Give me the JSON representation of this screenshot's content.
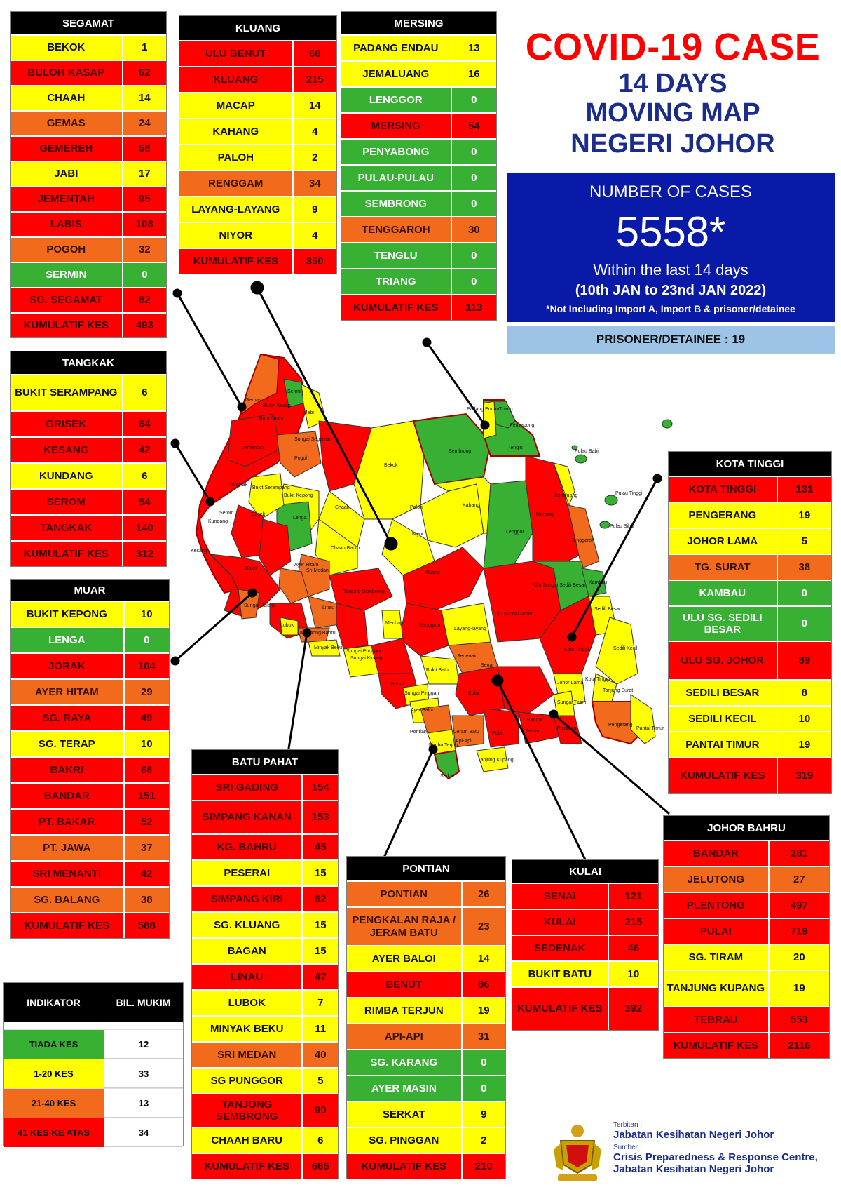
{
  "header": {
    "title": "COVID-19 CASE",
    "subtitle_lines": [
      "14 DAYS",
      "MOVING MAP",
      "NEGERI JOHOR"
    ]
  },
  "summary": {
    "label": "NUMBER OF CASES",
    "total": "5558*",
    "within": "Within the last 14 days",
    "range": "(10th JAN to 23nd JAN 2022)",
    "note": "*Not Including Import A, Import B & prisoner/detainee",
    "prisoner": "PRISONER/DETAINEE : 19"
  },
  "colors": {
    "red": "#ff0000",
    "yellow": "#ffff00",
    "orange": "#f26b1d",
    "green": "#38b034"
  },
  "districts": {
    "segamat": {
      "title": "SEGAMAT",
      "rows": [
        {
          "name": "BEKOK",
          "value": "1",
          "level": "yellow"
        },
        {
          "name": "BULOH KASAP",
          "value": "62",
          "level": "red"
        },
        {
          "name": "CHAAH",
          "value": "14",
          "level": "yellow"
        },
        {
          "name": "GEMAS",
          "value": "24",
          "level": "orange"
        },
        {
          "name": "GEMEREH",
          "value": "58",
          "level": "red"
        },
        {
          "name": "JABI",
          "value": "17",
          "level": "yellow"
        },
        {
          "name": "JEMENTAH",
          "value": "95",
          "level": "red"
        },
        {
          "name": "LABIS",
          "value": "108",
          "level": "red"
        },
        {
          "name": "POGOH",
          "value": "32",
          "level": "orange"
        },
        {
          "name": "SERMIN",
          "value": "0",
          "level": "green"
        },
        {
          "name": "SG. SEGAMAT",
          "value": "82",
          "level": "red"
        },
        {
          "name": "KUMULATIF KES",
          "value": "493",
          "level": "red"
        }
      ]
    },
    "kluang": {
      "title": "KLUANG",
      "rows": [
        {
          "name": "ULU BENUT",
          "value": "68",
          "level": "red"
        },
        {
          "name": "KLUANG",
          "value": "215",
          "level": "red"
        },
        {
          "name": "MACAP",
          "value": "14",
          "level": "yellow"
        },
        {
          "name": "KAHANG",
          "value": "4",
          "level": "yellow"
        },
        {
          "name": "PALOH",
          "value": "2",
          "level": "yellow"
        },
        {
          "name": "RENGGAM",
          "value": "34",
          "level": "orange"
        },
        {
          "name": "LAYANG-LAYANG",
          "value": "9",
          "level": "yellow"
        },
        {
          "name": "NIYOR",
          "value": "4",
          "level": "yellow"
        },
        {
          "name": "KUMULATIF KES",
          "value": "350",
          "level": "red"
        }
      ]
    },
    "mersing": {
      "title": "MERSING",
      "rows": [
        {
          "name": "PADANG ENDAU",
          "value": "13",
          "level": "yellow"
        },
        {
          "name": "JEMALUANG",
          "value": "16",
          "level": "yellow"
        },
        {
          "name": "LENGGOR",
          "value": "0",
          "level": "green"
        },
        {
          "name": "MERSING",
          "value": "54",
          "level": "red"
        },
        {
          "name": "PENYABONG",
          "value": "0",
          "level": "green"
        },
        {
          "name": "PULAU-PULAU",
          "value": "0",
          "level": "green"
        },
        {
          "name": "SEMBRONG",
          "value": "0",
          "level": "green"
        },
        {
          "name": "TENGGAROH",
          "value": "30",
          "level": "orange"
        },
        {
          "name": "TENGLU",
          "value": "0",
          "level": "green"
        },
        {
          "name": "TRIANG",
          "value": "0",
          "level": "green"
        },
        {
          "name": "KUMULATIF KES",
          "value": "113",
          "level": "red"
        }
      ]
    },
    "tangkak": {
      "title": "TANGKAK",
      "rows": [
        {
          "name": "BUKIT SERAMPANG",
          "value": "6",
          "level": "yellow"
        },
        {
          "name": "GRISEK",
          "value": "64",
          "level": "red"
        },
        {
          "name": "KESANG",
          "value": "42",
          "level": "red"
        },
        {
          "name": "KUNDANG",
          "value": "6",
          "level": "yellow"
        },
        {
          "name": "SEROM",
          "value": "54",
          "level": "red"
        },
        {
          "name": "TANGKAK",
          "value": "140",
          "level": "red"
        },
        {
          "name": "KUMULATIF KES",
          "value": "312",
          "level": "red"
        }
      ]
    },
    "muar": {
      "title": "MUAR",
      "rows": [
        {
          "name": "BUKIT KEPONG",
          "value": "10",
          "level": "yellow"
        },
        {
          "name": "LENGA",
          "value": "0",
          "level": "green"
        },
        {
          "name": "JORAK",
          "value": "104",
          "level": "red"
        },
        {
          "name": "AYER HITAM",
          "value": "29",
          "level": "orange"
        },
        {
          "name": "SG. RAYA",
          "value": "49",
          "level": "red"
        },
        {
          "name": "SG. TERAP",
          "value": "10",
          "level": "yellow"
        },
        {
          "name": "BAKRI",
          "value": "66",
          "level": "red"
        },
        {
          "name": "BANDAR",
          "value": "151",
          "level": "red"
        },
        {
          "name": "PT. BAKAR",
          "value": "52",
          "level": "red"
        },
        {
          "name": "PT. JAWA",
          "value": "37",
          "level": "orange"
        },
        {
          "name": "SRI MENANTI",
          "value": "42",
          "level": "red"
        },
        {
          "name": "SG. BALANG",
          "value": "38",
          "level": "orange"
        },
        {
          "name": "KUMULATIF KES",
          "value": "588",
          "level": "red"
        }
      ]
    },
    "kota_tinggi": {
      "title": "KOTA TINGGI",
      "rows": [
        {
          "name": "KOTA TINGGI",
          "value": "131",
          "level": "red"
        },
        {
          "name": "PENGERANG",
          "value": "19",
          "level": "yellow"
        },
        {
          "name": "JOHOR LAMA",
          "value": "5",
          "level": "yellow"
        },
        {
          "name": "TG. SURAT",
          "value": "38",
          "level": "orange"
        },
        {
          "name": "KAMBAU",
          "value": "0",
          "level": "green"
        },
        {
          "name": "ULU SG. SEDILI BESAR",
          "value": "0",
          "level": "green"
        },
        {
          "name": "ULU  SG. JOHOR",
          "value": "89",
          "level": "red"
        },
        {
          "name": "SEDILI BESAR",
          "value": "8",
          "level": "yellow"
        },
        {
          "name": "SEDILI KECIL",
          "value": "10",
          "level": "yellow"
        },
        {
          "name": "PANTAI TIMUR",
          "value": "19",
          "level": "yellow"
        },
        {
          "name": "KUMULATIF KES",
          "value": "319",
          "level": "red"
        }
      ]
    },
    "batu_pahat": {
      "title": "BATU PAHAT",
      "rows": [
        {
          "name": "SRI GADING",
          "value": "154",
          "level": "red"
        },
        {
          "name": "SIMPANG KANAN",
          "value": "153",
          "level": "red"
        },
        {
          "name": "KG. BAHRU",
          "value": "45",
          "level": "red"
        },
        {
          "name": "PESERAI",
          "value": "15",
          "level": "yellow"
        },
        {
          "name": "SIMPANG KIRI",
          "value": "62",
          "level": "red"
        },
        {
          "name": "SG. KLUANG",
          "value": "15",
          "level": "yellow"
        },
        {
          "name": "BAGAN",
          "value": "15",
          "level": "yellow"
        },
        {
          "name": "LINAU",
          "value": "47",
          "level": "red"
        },
        {
          "name": "LUBOK",
          "value": "7",
          "level": "yellow"
        },
        {
          "name": "MINYAK BEKU",
          "value": "11",
          "level": "yellow"
        },
        {
          "name": "SRI MEDAN",
          "value": "40",
          "level": "orange"
        },
        {
          "name": "SG PUNGGOR",
          "value": "5",
          "level": "yellow"
        },
        {
          "name": "TANJONG SEMBRONG",
          "value": "90",
          "level": "red"
        },
        {
          "name": "CHAAH BARU",
          "value": "6",
          "level": "yellow"
        },
        {
          "name": "KUMULATIF KES",
          "value": "665",
          "level": "red"
        }
      ]
    },
    "pontian": {
      "title": "PONTIAN",
      "rows": [
        {
          "name": "PONTIAN",
          "value": "26",
          "level": "orange"
        },
        {
          "name": "PENGKALAN RAJA / JERAM BATU",
          "value": "23",
          "level": "orange"
        },
        {
          "name": "AYER BALOI",
          "value": "14",
          "level": "yellow"
        },
        {
          "name": "BENUT",
          "value": "86",
          "level": "red"
        },
        {
          "name": "RIMBA TERJUN",
          "value": "19",
          "level": "yellow"
        },
        {
          "name": "API-API",
          "value": "31",
          "level": "orange"
        },
        {
          "name": "SG. KARANG",
          "value": "0",
          "level": "green"
        },
        {
          "name": "AYER MASIN",
          "value": "0",
          "level": "green"
        },
        {
          "name": "SERKAT",
          "value": "9",
          "level": "yellow"
        },
        {
          "name": "SG. PINGGAN",
          "value": "2",
          "level": "yellow"
        },
        {
          "name": "KUMULATIF KES",
          "value": "210",
          "level": "red"
        }
      ]
    },
    "kulai": {
      "title": "KULAI",
      "rows": [
        {
          "name": "SENAI",
          "value": "121",
          "level": "red"
        },
        {
          "name": "KULAI",
          "value": "215",
          "level": "red"
        },
        {
          "name": "SEDENAK",
          "value": "46",
          "level": "red"
        },
        {
          "name": "BUKIT BATU",
          "value": "10",
          "level": "yellow"
        },
        {
          "name": "KUMULATIF KES",
          "value": "392",
          "level": "red"
        }
      ]
    },
    "johor_bahru": {
      "title": "JOHOR BAHRU",
      "rows": [
        {
          "name": "BANDAR",
          "value": "281",
          "level": "red"
        },
        {
          "name": "JELUTONG",
          "value": "27",
          "level": "orange"
        },
        {
          "name": "PLENTONG",
          "value": "497",
          "level": "red"
        },
        {
          "name": "PULAI",
          "value": "719",
          "level": "red"
        },
        {
          "name": "SG. TIRAM",
          "value": "20",
          "level": "yellow"
        },
        {
          "name": "TANJUNG KUPANG",
          "value": "19",
          "level": "yellow"
        },
        {
          "name": "TEBRAU",
          "value": "553",
          "level": "red"
        },
        {
          "name": "KUMULATIF KES",
          "value": "2116",
          "level": "red"
        }
      ]
    }
  },
  "legend": {
    "col1": "INDIKATOR",
    "col2": "BIL. MUKIM",
    "rows": [
      {
        "label": "TIADA KES",
        "count": "12",
        "level": "green"
      },
      {
        "label": "1-20 KES",
        "count": "33",
        "level": "yellow"
      },
      {
        "label": "21-40 KES",
        "count": "13",
        "level": "orange"
      },
      {
        "label": "41 KES KE ATAS",
        "count": "34",
        "level": "red"
      }
    ]
  },
  "publisher": {
    "label1": "Terbitan :",
    "name1": "Jabatan Kesihatan Negeri Johor",
    "label2": "Sumber :",
    "name2a": "Crisis Preparedness & Response Centre,",
    "name2b": "Jabatan Kesihatan Negeri Johor"
  },
  "map_labels": [
    "Gemas",
    "Buloh Kasap",
    "Sermin",
    "Jabi",
    "Batu Anam",
    "Sungai Segamat",
    "Jementah",
    "Pogoh",
    "Bekok",
    "Sembrong",
    "Padang Endau",
    "Triang",
    "Penyabong",
    "Tenglu",
    "Pulau Babi",
    "Tangkak",
    "Bukit Serampang",
    "Bukit Kepong",
    "Serom",
    "Grisek",
    "Lenga",
    "Chaah",
    "Paloh",
    "Kahang",
    "Jemaluang",
    "Pulau Tinggi",
    "Pulau Sibu",
    "Niyor",
    "Lenggor",
    "Mersing",
    "Tenggaroh",
    "Kundang",
    "Kesang",
    "Bakri",
    "Ayer Hitam",
    "Sri Medan",
    "Chaah Bahru",
    "Kluang",
    "Tanjung Sembrong",
    "Linau",
    "Renggam",
    "Ulu Sungai Sedili Besar",
    "Kambau",
    "Sedili Besar",
    "Ulu Sungai Johor",
    "Sedili Kecil",
    "Kota Tinggi",
    "Kota Tinggi",
    "Tanjung Surat",
    "Johor Lama",
    "Sungai Tiram",
    "Pengerang",
    "Pantai Timur",
    "Sungai Balang",
    "Lubok",
    "Minyak Beku",
    "Kampong Bahru",
    "Mechap",
    "Sungai Punggor",
    "Sungai Kluang",
    "Layang-layang",
    "Sedenak",
    "Benut",
    "Bukit Batu",
    "Senai",
    "Sungai Pinggan",
    "Ayer Baloi",
    "Kulai",
    "Pontian",
    "Jeram Batu",
    "Pulai",
    "Tebrau",
    "Plentong",
    "Rimba Terjun",
    "Serkat",
    "Tanjung Kupang",
    "Api-Api",
    "Bandar"
  ]
}
